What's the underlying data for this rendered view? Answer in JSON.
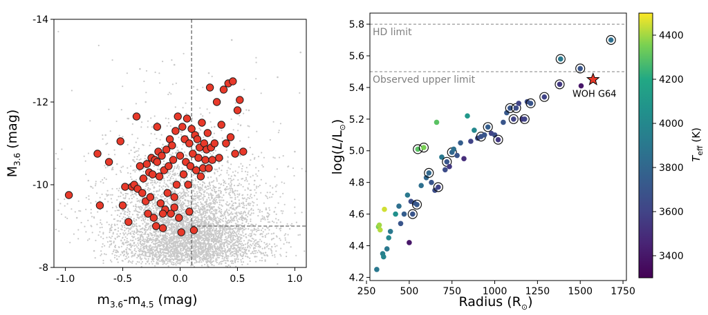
{
  "chart_data": [
    {
      "type": "scatter",
      "title": "",
      "xlabel": "m_{3.6}-m_{4.5} (mag)",
      "ylabel": "M_{3.6} (mag)",
      "xlabel_parts": [
        "m",
        "3.6",
        "-m",
        "4.5",
        " (mag)"
      ],
      "ylabel_parts": [
        "M",
        "3.6",
        " (mag)"
      ],
      "xlim": [
        -1.1,
        1.1
      ],
      "ylim": [
        -8,
        -14
      ],
      "y_inverted": true,
      "x_ticks": [
        "-1.0",
        "-0.5",
        "0.0",
        "0.5",
        "1.0"
      ],
      "x_tick_values": [
        -1.0,
        -0.5,
        0.0,
        0.5,
        1.0
      ],
      "y_ticks": [
        "-14",
        "-12",
        "-10",
        "-8"
      ],
      "y_tick_values": [
        -14,
        -12,
        -10,
        -8
      ],
      "grid": false,
      "colors": {
        "highlight": "#e8392a",
        "edge": "#1a1a1a",
        "background_points": "#c8c8c8",
        "guide": "#666666"
      },
      "guides": {
        "vertical_x": 0.1,
        "horizontal_y": -9.0,
        "horizontal_from_x": 0.1
      },
      "series": [
        {
          "role": "background",
          "points": [
            [
              -0.9,
              -9.2
            ],
            [
              -0.8,
              -10.1
            ],
            [
              -0.7,
              -9.6
            ],
            [
              -0.65,
              -11.2
            ],
            [
              -0.6,
              -8.9
            ],
            [
              -0.55,
              -10.5
            ],
            [
              -0.5,
              -9.4
            ],
            [
              -0.45,
              -11.6
            ],
            [
              -0.4,
              -8.6
            ],
            [
              -0.4,
              -10.9
            ],
            [
              -0.35,
              -9.0
            ],
            [
              -0.3,
              -12.0
            ],
            [
              -0.3,
              -8.3
            ],
            [
              -0.25,
              -9.8
            ],
            [
              -0.2,
              -8.7
            ],
            [
              -0.2,
              -11.5
            ],
            [
              -0.15,
              -9.1
            ],
            [
              -0.1,
              -8.4
            ],
            [
              -0.1,
              -10.3
            ],
            [
              -0.05,
              -8.9
            ],
            [
              0.0,
              -8.2
            ],
            [
              0.0,
              -9.5
            ],
            [
              0.05,
              -8.6
            ],
            [
              0.1,
              -8.3
            ],
            [
              0.1,
              -9.8
            ],
            [
              0.15,
              -8.8
            ],
            [
              0.2,
              -8.4
            ],
            [
              0.2,
              -10.6
            ],
            [
              0.25,
              -9.1
            ],
            [
              0.3,
              -8.5
            ],
            [
              0.3,
              -11.4
            ],
            [
              0.35,
              -8.9
            ],
            [
              0.4,
              -8.3
            ],
            [
              0.45,
              -9.6
            ],
            [
              0.5,
              -8.7
            ],
            [
              0.55,
              -9.2
            ],
            [
              0.6,
              -8.4
            ],
            [
              0.65,
              -10.1
            ],
            [
              0.7,
              -8.8
            ],
            [
              0.75,
              -9.4
            ],
            [
              0.8,
              -8.5
            ],
            [
              0.85,
              -12.6
            ],
            [
              0.9,
              -9.0
            ],
            [
              0.95,
              -8.6
            ],
            [
              1.0,
              -10.8
            ],
            [
              1.05,
              -13.2
            ],
            [
              -0.05,
              -12.9
            ],
            [
              0.15,
              -12.3
            ],
            [
              -0.35,
              -12.8
            ],
            [
              0.45,
              -13.5
            ],
            [
              -0.75,
              -8.4
            ],
            [
              -0.55,
              -8.2
            ],
            [
              0.25,
              -12.7
            ],
            [
              0.6,
              -11.8
            ]
          ]
        },
        {
          "role": "highlighted",
          "points": [
            [
              -0.97,
              -9.75
            ],
            [
              -0.72,
              -10.75
            ],
            [
              -0.7,
              -9.5
            ],
            [
              -0.62,
              -10.55
            ],
            [
              -0.52,
              -11.05
            ],
            [
              -0.5,
              -9.5
            ],
            [
              -0.48,
              -9.95
            ],
            [
              -0.45,
              -9.1
            ],
            [
              -0.42,
              -9.95
            ],
            [
              -0.4,
              -10.0
            ],
            [
              -0.38,
              -11.65
            ],
            [
              -0.37,
              -9.9
            ],
            [
              -0.35,
              -10.45
            ],
            [
              -0.33,
              -9.8
            ],
            [
              -0.32,
              -10.15
            ],
            [
              -0.3,
              -9.6
            ],
            [
              -0.29,
              -10.5
            ],
            [
              -0.28,
              -9.3
            ],
            [
              -0.27,
              -10.3
            ],
            [
              -0.26,
              -9.7
            ],
            [
              -0.25,
              -10.65
            ],
            [
              -0.24,
              -10.25
            ],
            [
              -0.23,
              -9.2
            ],
            [
              -0.22,
              -10.6
            ],
            [
              -0.21,
              -9.0
            ],
            [
              -0.2,
              -10.55
            ],
            [
              -0.19,
              -10.8
            ],
            [
              -0.18,
              -10.2
            ],
            [
              -0.17,
              -9.55
            ],
            [
              -0.16,
              -10.7
            ],
            [
              -0.15,
              -8.95
            ],
            [
              -0.14,
              -10.35
            ],
            [
              -0.13,
              -9.4
            ],
            [
              -0.12,
              -10.85
            ],
            [
              -0.11,
              -9.8
            ],
            [
              -0.1,
              -10.45
            ],
            [
              -0.09,
              -11.1
            ],
            [
              -0.08,
              -9.3
            ],
            [
              -0.07,
              -10.95
            ],
            [
              -0.06,
              -10.6
            ],
            [
              -0.05,
              -9.7
            ],
            [
              -0.04,
              -11.3
            ],
            [
              -0.03,
              -10.0
            ],
            [
              -0.02,
              -11.65
            ],
            [
              -0.01,
              -9.2
            ],
            [
              0.0,
              -10.7
            ],
            [
              0.01,
              -8.85
            ],
            [
              0.02,
              -11.4
            ],
            [
              0.03,
              -10.25
            ],
            [
              0.04,
              -11.1
            ],
            [
              0.05,
              -10.55
            ],
            [
              0.06,
              -11.6
            ],
            [
              0.07,
              -10.0
            ],
            [
              0.08,
              -11.0
            ],
            [
              0.09,
              -10.45
            ],
            [
              0.1,
              -11.35
            ],
            [
              0.11,
              -10.75
            ],
            [
              0.12,
              -8.9
            ],
            [
              0.13,
              -11.2
            ],
            [
              0.14,
              -10.35
            ],
            [
              0.15,
              -11.1
            ],
            [
              0.16,
              -10.65
            ],
            [
              0.17,
              -10.9
            ],
            [
              0.18,
              -10.2
            ],
            [
              0.19,
              -11.5
            ],
            [
              0.2,
              -10.4
            ],
            [
              0.21,
              -11.0
            ],
            [
              0.22,
              -10.6
            ],
            [
              0.23,
              -10.85
            ],
            [
              0.24,
              -11.25
            ],
            [
              0.25,
              -10.4
            ],
            [
              0.26,
              -12.35
            ],
            [
              0.27,
              -10.9
            ],
            [
              0.28,
              -10.6
            ],
            [
              0.3,
              -11.0
            ],
            [
              0.32,
              -12.0
            ],
            [
              0.34,
              -10.65
            ],
            [
              0.36,
              -11.45
            ],
            [
              0.38,
              -12.3
            ],
            [
              0.4,
              -11.0
            ],
            [
              0.42,
              -12.45
            ],
            [
              0.44,
              -11.15
            ],
            [
              0.46,
              -12.5
            ],
            [
              0.48,
              -10.75
            ],
            [
              0.5,
              -11.8
            ],
            [
              0.52,
              -12.05
            ],
            [
              0.55,
              -10.8
            ],
            [
              -0.2,
              -11.4
            ],
            [
              -0.15,
              -9.3
            ],
            [
              -0.05,
              -9.45
            ],
            [
              0.08,
              -9.35
            ]
          ]
        }
      ]
    },
    {
      "type": "scatter",
      "title": "",
      "xlabel": "Radius (R_⊙)",
      "ylabel": "log(L/L_⊙)",
      "xlabel_text": "Radius (R",
      "xlabel_sub": "⊙",
      "ylabel_parts": [
        "log(",
        "L",
        "/L",
        "⊙",
        ")"
      ],
      "xlim": [
        270,
        1770
      ],
      "ylim": [
        4.18,
        5.87
      ],
      "x_ticks": [
        "250",
        "500",
        "750",
        "1000",
        "1250",
        "1500",
        "1750"
      ],
      "x_tick_values": [
        250,
        500,
        750,
        1000,
        1250,
        1500,
        1750
      ],
      "y_ticks": [
        "4.2",
        "4.4",
        "4.6",
        "4.8",
        "5.0",
        "5.2",
        "5.4",
        "5.6",
        "5.8"
      ],
      "y_tick_values": [
        4.2,
        4.4,
        4.6,
        4.8,
        5.0,
        5.2,
        5.4,
        5.6,
        5.8
      ],
      "grid": false,
      "colormap": "viridis",
      "colorbar": {
        "label_main": "T",
        "label_sub": "eff",
        "label_unit": " (K)",
        "range": [
          3300,
          4500
        ],
        "ticks": [
          "3400",
          "3600",
          "3800",
          "4000",
          "4200",
          "4400"
        ],
        "tick_values": [
          3400,
          3600,
          3800,
          4000,
          4200,
          4400
        ]
      },
      "reference_lines": [
        {
          "y": 5.8,
          "label": "HD limit"
        },
        {
          "y": 5.5,
          "label": "Observed upper limit"
        }
      ],
      "annotation": {
        "label": "WOH G64",
        "x": 1575,
        "y": 5.45,
        "marker": "star",
        "color": "#e8392a"
      },
      "points": [
        {
          "x": 310,
          "y": 4.25,
          "teff": 3900
        },
        {
          "x": 320,
          "y": 4.52,
          "teff": 4350
        },
        {
          "x": 325,
          "y": 4.53,
          "teff": 4400
        },
        {
          "x": 330,
          "y": 4.5,
          "teff": 4420
        },
        {
          "x": 345,
          "y": 4.35,
          "teff": 3950
        },
        {
          "x": 350,
          "y": 4.33,
          "teff": 3980
        },
        {
          "x": 355,
          "y": 4.63,
          "teff": 4450
        },
        {
          "x": 370,
          "y": 4.38,
          "teff": 3900
        },
        {
          "x": 380,
          "y": 4.45,
          "teff": 4000
        },
        {
          "x": 390,
          "y": 4.49,
          "teff": 3900
        },
        {
          "x": 420,
          "y": 4.6,
          "teff": 4050
        },
        {
          "x": 440,
          "y": 4.65,
          "teff": 3850
        },
        {
          "x": 450,
          "y": 4.54,
          "teff": 3700
        },
        {
          "x": 470,
          "y": 4.6,
          "teff": 3750
        },
        {
          "x": 490,
          "y": 4.72,
          "teff": 3900
        },
        {
          "x": 500,
          "y": 4.42,
          "teff": 3400
        },
        {
          "x": 510,
          "y": 4.68,
          "teff": 3650
        },
        {
          "x": 520,
          "y": 4.6,
          "teff": 3700,
          "circled": true
        },
        {
          "x": 530,
          "y": 4.67,
          "teff": 3700
        },
        {
          "x": 545,
          "y": 4.66,
          "teff": 3720,
          "circled": true
        },
        {
          "x": 550,
          "y": 5.01,
          "teff": 4300,
          "circled": true
        },
        {
          "x": 570,
          "y": 4.78,
          "teff": 3850
        },
        {
          "x": 585,
          "y": 5.02,
          "teff": 4350,
          "circled": true
        },
        {
          "x": 600,
          "y": 4.83,
          "teff": 3800
        },
        {
          "x": 615,
          "y": 4.86,
          "teff": 3800,
          "circled": true
        },
        {
          "x": 630,
          "y": 4.8,
          "teff": 3700
        },
        {
          "x": 650,
          "y": 4.75,
          "teff": 3650
        },
        {
          "x": 660,
          "y": 5.18,
          "teff": 4300
        },
        {
          "x": 670,
          "y": 4.77,
          "teff": 3600,
          "circled": true
        },
        {
          "x": 690,
          "y": 4.96,
          "teff": 3900
        },
        {
          "x": 710,
          "y": 4.88,
          "teff": 3650
        },
        {
          "x": 720,
          "y": 4.93,
          "teff": 3700,
          "circled": true
        },
        {
          "x": 735,
          "y": 4.9,
          "teff": 3550
        },
        {
          "x": 750,
          "y": 4.99,
          "teff": 3800,
          "circled": true
        },
        {
          "x": 760,
          "y": 5.01,
          "teff": 3850
        },
        {
          "x": 780,
          "y": 4.97,
          "teff": 3700
        },
        {
          "x": 800,
          "y": 5.05,
          "teff": 3750
        },
        {
          "x": 820,
          "y": 4.95,
          "teff": 3500
        },
        {
          "x": 840,
          "y": 5.22,
          "teff": 4100
        },
        {
          "x": 860,
          "y": 5.06,
          "teff": 3600
        },
        {
          "x": 880,
          "y": 5.13,
          "teff": 4000
        },
        {
          "x": 900,
          "y": 5.08,
          "teff": 3650
        },
        {
          "x": 920,
          "y": 5.09,
          "teff": 3680,
          "circled": true
        },
        {
          "x": 940,
          "y": 5.1,
          "teff": 3700
        },
        {
          "x": 960,
          "y": 5.15,
          "teff": 3750,
          "circled": true
        },
        {
          "x": 980,
          "y": 5.11,
          "teff": 3600
        },
        {
          "x": 1000,
          "y": 5.1,
          "teff": 3650
        },
        {
          "x": 1020,
          "y": 5.07,
          "teff": 3550,
          "circled": true
        },
        {
          "x": 1050,
          "y": 5.18,
          "teff": 3700
        },
        {
          "x": 1070,
          "y": 5.24,
          "teff": 3720
        },
        {
          "x": 1090,
          "y": 5.27,
          "teff": 3700,
          "circled": true
        },
        {
          "x": 1110,
          "y": 5.2,
          "teff": 3600,
          "circled": true
        },
        {
          "x": 1125,
          "y": 5.27,
          "teff": 3650,
          "circled": true
        },
        {
          "x": 1140,
          "y": 5.3,
          "teff": 3600
        },
        {
          "x": 1160,
          "y": 5.2,
          "teff": 3550
        },
        {
          "x": 1175,
          "y": 5.2,
          "teff": 3600,
          "circled": true
        },
        {
          "x": 1190,
          "y": 5.31,
          "teff": 3650
        },
        {
          "x": 1210,
          "y": 5.3,
          "teff": 3700,
          "circled": true
        },
        {
          "x": 1290,
          "y": 5.34,
          "teff": 3600,
          "circled": true
        },
        {
          "x": 1380,
          "y": 5.42,
          "teff": 3550,
          "circled": true
        },
        {
          "x": 1385,
          "y": 5.58,
          "teff": 3900,
          "circled": true
        },
        {
          "x": 1500,
          "y": 5.52,
          "teff": 3700,
          "circled": true
        },
        {
          "x": 1505,
          "y": 5.41,
          "teff": 3400
        },
        {
          "x": 1680,
          "y": 5.7,
          "teff": 3850,
          "circled": true
        }
      ]
    }
  ]
}
